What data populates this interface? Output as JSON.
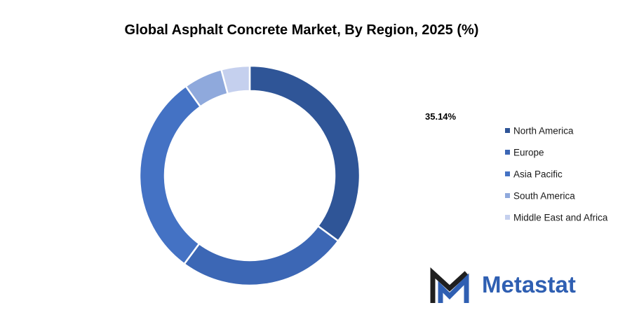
{
  "chart_data": {
    "type": "pie",
    "variant": "donut",
    "title": "Global Asphalt Concrete Market, By Region, 2025 (%)",
    "categories": [
      "North America",
      "Europe",
      "Asia Pacific",
      "South America",
      "Middle East and Africa"
    ],
    "values": [
      35.14,
      25.0,
      30.0,
      5.7,
      4.16
    ],
    "colors": [
      "#2f5597",
      "#3c67b5",
      "#4472c4",
      "#8fa9dc",
      "#c5d0ee"
    ],
    "data_labels": [
      {
        "category": "North America",
        "text": "35.14%"
      }
    ],
    "legend": {
      "placement": "right"
    }
  },
  "brand": {
    "name": "Metastat",
    "text_color": "#2f5fb2",
    "mark_color": "#1f1f1f"
  }
}
